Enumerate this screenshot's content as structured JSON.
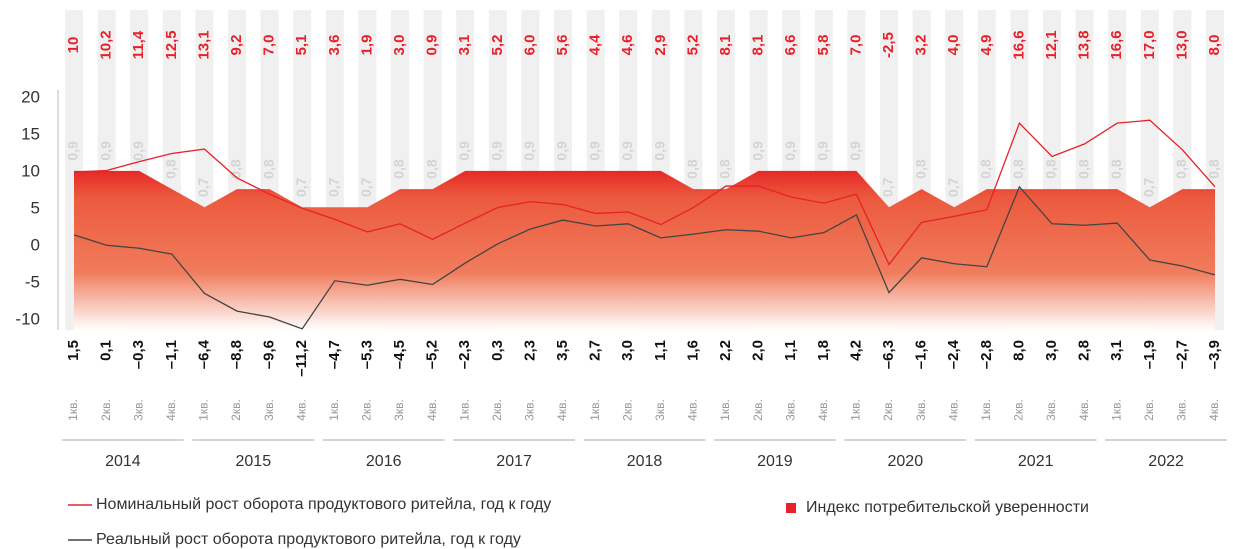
{
  "chart_data": {
    "type": "line",
    "categories": [
      "1кв.",
      "2кв.",
      "3кв.",
      "4кв.",
      "1кв.",
      "2кв.",
      "3кв.",
      "4кв.",
      "1кв.",
      "2кв.",
      "3кв.",
      "4кв.",
      "1кв.",
      "2кв.",
      "3кв.",
      "4кв.",
      "1кв.",
      "2кв.",
      "3кв.",
      "4кв.",
      "1кв.",
      "2кв.",
      "3кв.",
      "4кв.",
      "1кв.",
      "2кв.",
      "3кв.",
      "4кв.",
      "1кв.",
      "2кв.",
      "3кв.",
      "4кв.",
      "1кв.",
      "2кв.",
      "3кв.",
      "4кв."
    ],
    "years": [
      "2014",
      "2015",
      "2016",
      "2017",
      "2018",
      "2019",
      "2020",
      "2021",
      "2022"
    ],
    "ylim": [
      -12,
      20
    ],
    "yticks": [
      20,
      15,
      10,
      5,
      0,
      -5,
      -10
    ],
    "y2lim": [
      0,
      1.3
    ],
    "series": [
      {
        "name": "Номинальный рост оборота продуктового ритейла, год к году",
        "color": "#e8202a",
        "values": [
          10,
          10.2,
          11.4,
          12.5,
          13.1,
          9.2,
          7.0,
          5.1,
          3.6,
          1.9,
          3.0,
          0.9,
          3.1,
          5.2,
          6.0,
          5.6,
          4.4,
          4.6,
          2.9,
          5.2,
          8.1,
          8.1,
          6.6,
          5.8,
          7.0,
          -2.5,
          3.2,
          4.0,
          4.9,
          16.6,
          12.1,
          13.8,
          16.6,
          17.0,
          13.0,
          8.0
        ],
        "value_labels": [
          "10",
          "10,2",
          "11,4",
          "12,5",
          "13,1",
          "9,2",
          "7,0",
          "5,1",
          "3,6",
          "1,9",
          "3,0",
          "0,9",
          "3,1",
          "5,2",
          "6,0",
          "5,6",
          "4,4",
          "4,6",
          "2,9",
          "5,2",
          "8,1",
          "8,1",
          "6,6",
          "5,8",
          "7,0",
          "-2,5",
          "3,2",
          "4,0",
          "4,9",
          "16,6",
          "12,1",
          "13,8",
          "16,6",
          "17,0",
          "13,0",
          "8,0"
        ]
      },
      {
        "name": "Реальный рост оборота продуктового ритейла, год к году",
        "color": "#444444",
        "values": [
          1.5,
          0.1,
          -0.3,
          -1.1,
          -6.4,
          -8.8,
          -9.6,
          -11.2,
          -4.7,
          -5.3,
          -4.5,
          -5.2,
          -2.3,
          0.3,
          2.3,
          3.5,
          2.7,
          3.0,
          1.1,
          1.6,
          2.2,
          2.0,
          1.1,
          1.8,
          4.2,
          -6.3,
          -1.6,
          -2.4,
          -2.8,
          8.0,
          3.0,
          2.8,
          3.1,
          -1.9,
          -2.7,
          -3.9
        ],
        "value_labels": [
          "1,5",
          "0,1",
          "–0,3",
          "–1,1",
          "–6,4",
          "–8,8",
          "–9,6",
          "–11,2",
          "–4,7",
          "–5,3",
          "–4,5",
          "–5,2",
          "–2,3",
          "0,3",
          "2,3",
          "3,5",
          "2,7",
          "3,0",
          "1,1",
          "1,6",
          "2,2",
          "2,0",
          "1,1",
          "1,8",
          "4,2",
          "–6,3",
          "–1,6",
          "–2,4",
          "–2,8",
          "8,0",
          "3,0",
          "2,8",
          "3,1",
          "–1,9",
          "–2,7",
          "–3,9"
        ]
      },
      {
        "name": "Индекс потребительской уверенности",
        "color": "#e8202a",
        "type": "area",
        "axis": "y2",
        "values": [
          0.9,
          0.9,
          0.9,
          0.8,
          0.7,
          0.8,
          0.8,
          0.7,
          0.7,
          0.7,
          0.8,
          0.8,
          0.9,
          0.9,
          0.9,
          0.9,
          0.9,
          0.9,
          0.9,
          0.8,
          0.8,
          0.9,
          0.9,
          0.9,
          0.9,
          0.7,
          0.8,
          0.7,
          0.8,
          0.8,
          0.8,
          0.8,
          0.8,
          0.7,
          0.8,
          0.8
        ],
        "value_labels": [
          "0,9",
          "0,9",
          "0,9",
          "0,8",
          "0,7",
          "0,8",
          "0,8",
          "0,7",
          "0,7",
          "0,7",
          "0,8",
          "0,8",
          "0,9",
          "0,9",
          "0,9",
          "0,9",
          "0,9",
          "0,9",
          "0,9",
          "0,8",
          "0,8",
          "0,9",
          "0,9",
          "0,9",
          "0,9",
          "0,7",
          "0,8",
          "0,7",
          "0,8",
          "0,8",
          "0,8",
          "0,8",
          "0,8",
          "0,7",
          "0,8",
          "0,8"
        ]
      }
    ]
  }
}
